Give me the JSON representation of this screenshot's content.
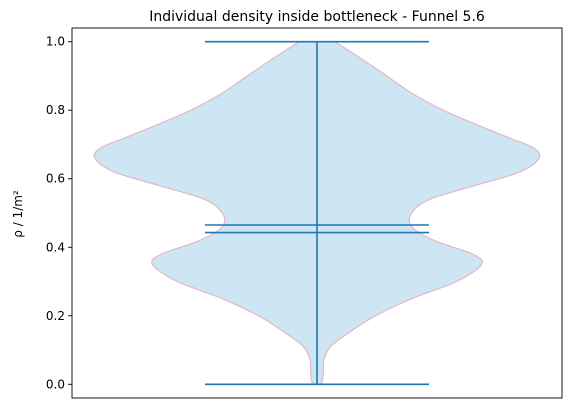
{
  "chart_data": {
    "type": "violin",
    "title": "Individual density inside bottleneck - Funnel 5.6",
    "xlabel": "",
    "ylabel": "ρ / 1/m²",
    "ylim": [
      -0.04,
      1.04
    ],
    "y_ticks": [
      0.0,
      0.2,
      0.4,
      0.6,
      0.8,
      1.0
    ],
    "y_tick_labels": [
      "0.0",
      "0.2",
      "0.4",
      "0.6",
      "0.8",
      "1.0"
    ],
    "x_ticks": [],
    "grid": false,
    "violin": {
      "min": 0.0,
      "max": 1.0,
      "mean": 0.465,
      "median": 0.443,
      "density_profile": [
        [
          0.0,
          0.02
        ],
        [
          0.03,
          0.028
        ],
        [
          0.07,
          0.03
        ],
        [
          0.11,
          0.06
        ],
        [
          0.15,
          0.14
        ],
        [
          0.2,
          0.26
        ],
        [
          0.25,
          0.42
        ],
        [
          0.3,
          0.62
        ],
        [
          0.35,
          0.73
        ],
        [
          0.38,
          0.69
        ],
        [
          0.42,
          0.52
        ],
        [
          0.46,
          0.42
        ],
        [
          0.5,
          0.42
        ],
        [
          0.54,
          0.5
        ],
        [
          0.58,
          0.7
        ],
        [
          0.62,
          0.9
        ],
        [
          0.66,
          0.985
        ],
        [
          0.69,
          0.96
        ],
        [
          0.72,
          0.85
        ],
        [
          0.76,
          0.7
        ],
        [
          0.8,
          0.56
        ],
        [
          0.85,
          0.42
        ],
        [
          0.9,
          0.31
        ],
        [
          0.94,
          0.22
        ],
        [
          0.97,
          0.15
        ],
        [
          1.0,
          0.08
        ]
      ]
    },
    "colors": {
      "body_fill": "#a6d0ea",
      "body_edge": "#e2b7c6",
      "lines": "#1f77b4"
    }
  }
}
